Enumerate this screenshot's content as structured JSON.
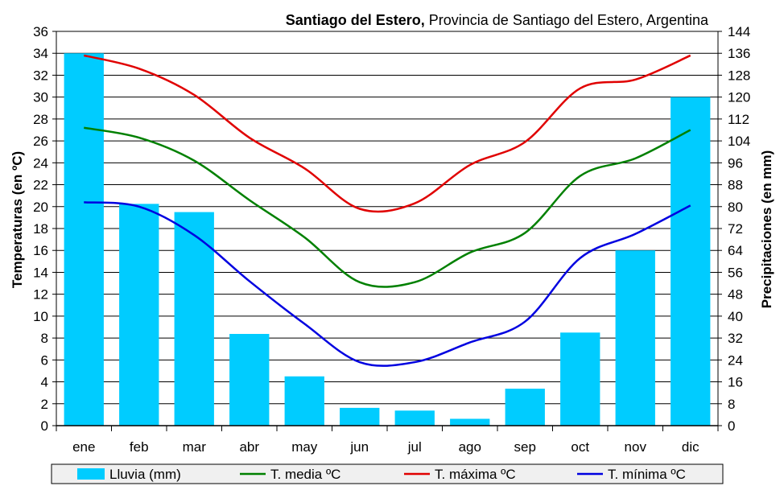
{
  "colors": {
    "rain": "#00CCFF",
    "t_media": "#008000",
    "t_max": "#E00000",
    "t_min": "#0000E0",
    "grid": "#000000",
    "legend_bg": "#F0F0F0"
  },
  "chart_data": {
    "type": "bar",
    "title_bold": "Santiago del Estero,",
    "title_rest": " Provincia de Santiago del Estero, Argentina",
    "ylabel": "Temperaturas (en ºC)",
    "y2label": "Precipitaciones (en mm)",
    "ylim": [
      0,
      36
    ],
    "y2lim": [
      0,
      144
    ],
    "yticks": [
      0,
      2,
      4,
      6,
      8,
      10,
      12,
      14,
      16,
      18,
      20,
      22,
      24,
      26,
      28,
      30,
      32,
      34,
      36
    ],
    "y2ticks": [
      0,
      8,
      16,
      24,
      32,
      40,
      48,
      56,
      64,
      72,
      80,
      88,
      96,
      104,
      112,
      120,
      128,
      136,
      144
    ],
    "categories": [
      "ene",
      "feb",
      "mar",
      "abr",
      "may",
      "jun",
      "jul",
      "ago",
      "sep",
      "oct",
      "nov",
      "dic"
    ],
    "grid": true,
    "legend_position": "bottom",
    "series": [
      {
        "name": "Lluvia (mm)",
        "kind": "bar",
        "axis": "right",
        "values": [
          136,
          81,
          78,
          33.5,
          18,
          6.5,
          5.5,
          2.5,
          13.5,
          34,
          64,
          120
        ]
      },
      {
        "name": "T. media ºC",
        "kind": "line",
        "axis": "left",
        "values": [
          27.2,
          26.3,
          24.2,
          20.6,
          17.2,
          13.1,
          13.1,
          15.8,
          17.6,
          22.8,
          24.4,
          27.0
        ]
      },
      {
        "name": "T. máxima ºC",
        "kind": "line",
        "axis": "left",
        "values": [
          33.8,
          32.6,
          30.2,
          26.3,
          23.5,
          19.8,
          20.3,
          23.8,
          25.9,
          30.8,
          31.6,
          33.8
        ]
      },
      {
        "name": "T. mínima ºC",
        "kind": "line",
        "axis": "left",
        "values": [
          20.4,
          20.0,
          17.4,
          13.2,
          9.3,
          5.8,
          5.8,
          7.6,
          9.5,
          15.3,
          17.5,
          20.1
        ]
      }
    ]
  }
}
